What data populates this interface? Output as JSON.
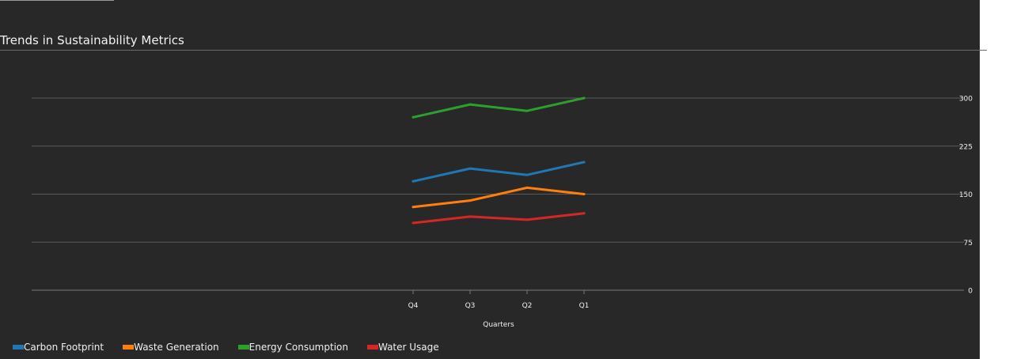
{
  "chart_data": {
    "type": "line",
    "title": "Trends in Sustainability Metrics",
    "xlabel": "Quarters",
    "ylabel": "",
    "categories": [
      "Q4",
      "Q3",
      "Q2",
      "Q1"
    ],
    "ylim": [
      0,
      300
    ],
    "yticks": [
      0,
      75,
      150,
      225,
      300
    ],
    "grid": true,
    "legend_position": "bottom-left",
    "series": [
      {
        "name": "Carbon Footprint",
        "color": "#1f77b4",
        "values": [
          170,
          190,
          180,
          200
        ]
      },
      {
        "name": "Waste Generation",
        "color": "#ff7f0e",
        "values": [
          130,
          140,
          160,
          150
        ]
      },
      {
        "name": "Energy Consumption",
        "color": "#2ca02c",
        "values": [
          270,
          290,
          280,
          300
        ]
      },
      {
        "name": "Water Usage",
        "color": "#d62728",
        "values": [
          105,
          115,
          110,
          120
        ]
      }
    ]
  },
  "colors": {
    "background": "#282828",
    "grid": "#5a5a5a",
    "text": "#f0f0f0"
  }
}
